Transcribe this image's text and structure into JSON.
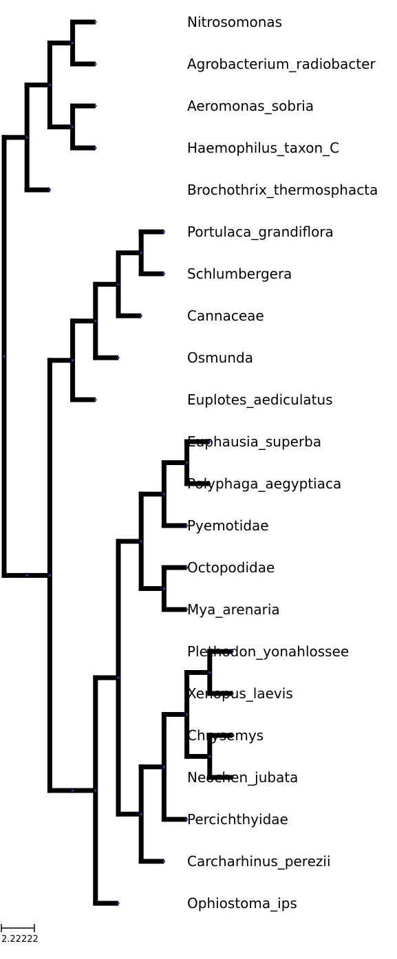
{
  "tree": {
    "leaves": [
      "Nitrosomonas",
      "Agrobacterium_radiobacter",
      "Aeromonas_sobria",
      "Haemophilus_taxon_C",
      "Brochothrix_thermosphacta",
      "Portulaca_grandiflora",
      "Schlumbergera",
      "Cannaceae",
      "Osmunda",
      "Euplotes_aediculatus",
      "Euphausia_superba",
      "Polyphaga_aegyptiaca",
      "Pyemotidae",
      "Octopodidae",
      "Mya_arenaria",
      "Plethodon_yonahlossee",
      "Xenopus_laevis",
      "Chrysemys",
      "Neochen_jubata",
      "Percichthyidae",
      "Carcharhinus_perezii",
      "Ophiostoma_ips"
    ],
    "newick": "((((Nitrosomonas,Agrobacterium_radiobacter),(Aeromonas_sobria,Haemophilus_taxon_C)),Brochothrix_thermosphacta),((((((Portulaca_grandiflora,Schlumbergera),Cannaceae),Osmunda),Euplotes_aediculatus),((((((Euphausia_superba,Polyphaga_aegyptiaca),Pyemotidae),(Octopodidae,Mya_arenaria)),((((Plethodon_yonahlossee,Xenopus_laevis),(Chrysemys,Neochen_jubata)),Percichthyidae),Carcharhinus_perezii)),Ophiostoma_ips))))",
    "branch_color": "#000000",
    "node_color": "#1f3fa0"
  },
  "scale_bar": {
    "label": "2.22222"
  }
}
